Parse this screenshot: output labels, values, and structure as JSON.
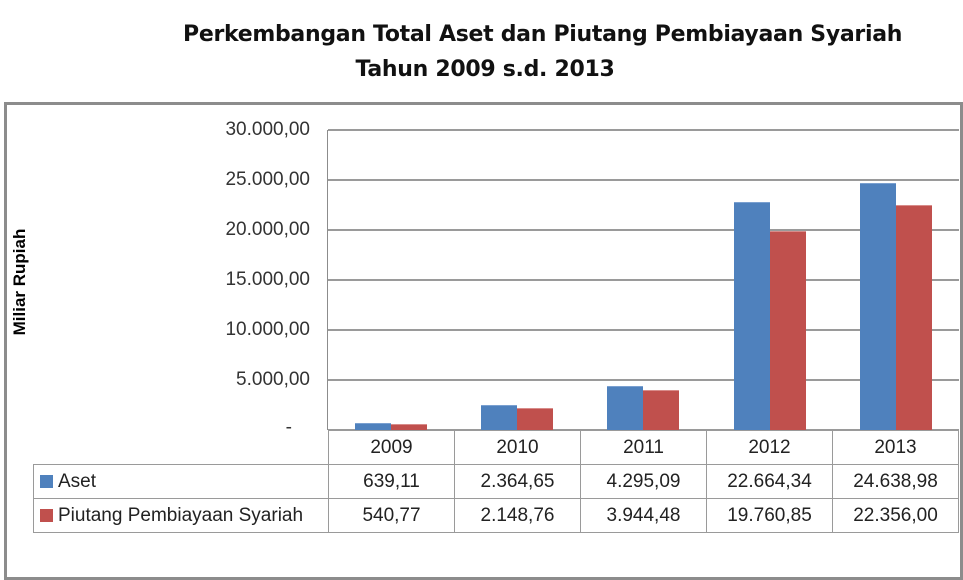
{
  "title": {
    "line1": "Perkembangan Total Aset dan Piutang Pembiayaan Syariah",
    "line2": "Tahun 2009 s.d. 2013"
  },
  "axis": {
    "ylabel": "Miliar Rupiah",
    "yticks": [
      "30.000,00",
      "25.000,00",
      "20.000,00",
      "15.000,00",
      "10.000,00",
      "5.000,00",
      "-"
    ]
  },
  "table": {
    "years": [
      "2009",
      "2010",
      "2011",
      "2012",
      "2013"
    ],
    "rows": [
      {
        "label": "Aset",
        "color": "#4f81bd",
        "values": [
          "639,11",
          "2.364,65",
          "4.295,09",
          "22.664,34",
          "24.638,98"
        ]
      },
      {
        "label": "Piutang Pembiayaan Syariah",
        "color": "#c0504d",
        "values": [
          "540,77",
          "2.148,76",
          "3.944,48",
          "19.760,85",
          "22.356,00"
        ]
      }
    ]
  },
  "chart_data": {
    "type": "bar",
    "title": "Perkembangan Total Aset dan Piutang Pembiayaan Syariah Tahun 2009 s.d. 2013",
    "xlabel": "",
    "ylabel": "Miliar Rupiah",
    "ylim": [
      0,
      30000
    ],
    "yticks": [
      0,
      5000,
      10000,
      15000,
      20000,
      25000,
      30000
    ],
    "grid": true,
    "legend_position": "data-table below chart",
    "categories": [
      "2009",
      "2010",
      "2011",
      "2012",
      "2013"
    ],
    "series": [
      {
        "name": "Aset",
        "color": "#4f81bd",
        "values": [
          639.11,
          2364.65,
          4295.09,
          22664.34,
          24638.98
        ]
      },
      {
        "name": "Piutang Pembiayaan Syariah",
        "color": "#c0504d",
        "values": [
          540.77,
          2148.76,
          3944.48,
          19760.85,
          22356.0
        ]
      }
    ]
  }
}
